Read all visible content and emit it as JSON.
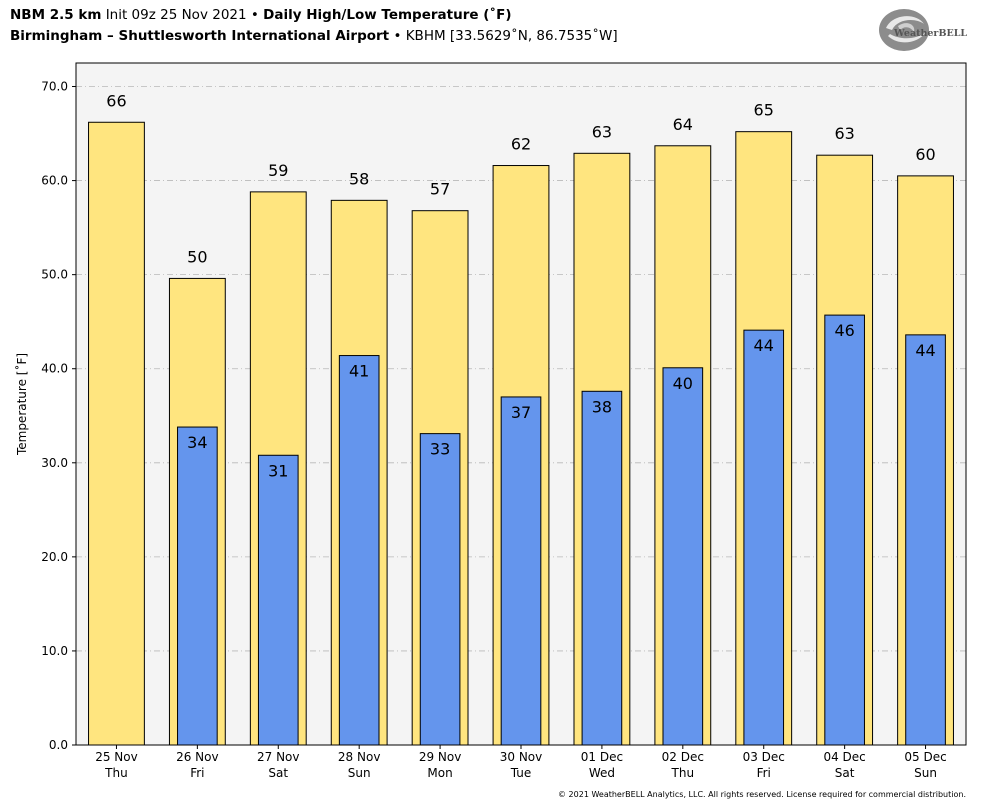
{
  "header": {
    "model": "NBM 2.5 km",
    "init": "Init 09z 25 Nov 2021",
    "sep1": "•",
    "product": "Daily High/Low Temperature (˚F)",
    "station_name": "Birmingham – Shuttlesworth International Airport",
    "sep2": "•",
    "station_info": "KBHM [33.5629˚N, 86.7535˚W]"
  },
  "logo": {
    "text": "WeatherBELL",
    "icon": "weatherbell-swirl-logo"
  },
  "copyright": "© 2021 WeatherBELL Analytics, LLC. All rights reserved. License required for commercial distribution.",
  "colors": {
    "high_bar": "#FFE57F",
    "low_bar": "#6495ED",
    "plot_background": "#F4F4F4"
  },
  "chart_data": {
    "type": "bar",
    "title": "",
    "xlabel": "",
    "ylabel": "Temperature [˚F]",
    "ylim": [
      0,
      72.5
    ],
    "yticks": [
      0,
      10,
      20,
      30,
      40,
      50,
      60,
      70
    ],
    "ytick_labels": [
      "0.0",
      "10.0",
      "20.0",
      "30.0",
      "40.0",
      "50.0",
      "60.0",
      "70.0"
    ],
    "grid": true,
    "categories": [
      {
        "date": "25 Nov",
        "day": "Thu"
      },
      {
        "date": "26 Nov",
        "day": "Fri"
      },
      {
        "date": "27 Nov",
        "day": "Sat"
      },
      {
        "date": "28 Nov",
        "day": "Sun"
      },
      {
        "date": "29 Nov",
        "day": "Mon"
      },
      {
        "date": "30 Nov",
        "day": "Tue"
      },
      {
        "date": "01 Dec",
        "day": "Wed"
      },
      {
        "date": "02 Dec",
        "day": "Thu"
      },
      {
        "date": "03 Dec",
        "day": "Fri"
      },
      {
        "date": "04 Dec",
        "day": "Sat"
      },
      {
        "date": "05 Dec",
        "day": "Sun"
      }
    ],
    "series": [
      {
        "values": [
          66.2,
          49.6,
          58.8,
          57.9,
          56.8,
          61.6,
          62.9,
          63.7,
          65.2,
          62.7,
          60.5
        ],
        "labels": [
          "66",
          "50",
          "59",
          "58",
          "57",
          "62",
          "63",
          "64",
          "65",
          "63",
          "60"
        ]
      },
      {
        "values": [
          null,
          33.8,
          30.8,
          41.4,
          33.1,
          37.0,
          37.6,
          40.1,
          44.1,
          45.7,
          43.6
        ],
        "labels": [
          "",
          "34",
          "31",
          "41",
          "33",
          "37",
          "38",
          "40",
          "44",
          "46",
          "44"
        ]
      }
    ]
  }
}
